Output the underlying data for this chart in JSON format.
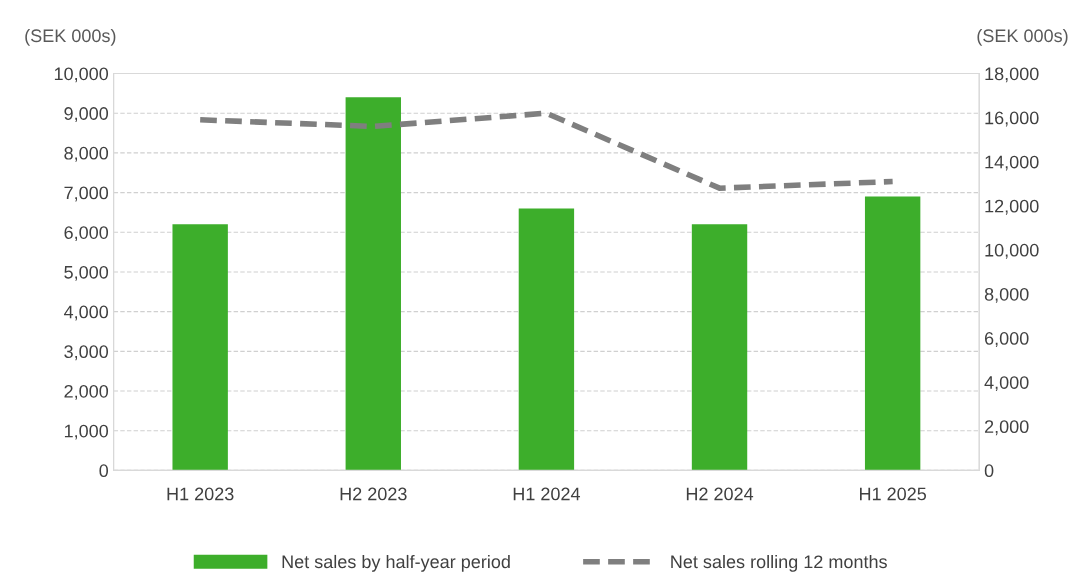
{
  "chart_data": {
    "type": "bar",
    "ylabel": "(SEK 000s)",
    "y2label": "(SEK 000s)",
    "categories": [
      "H1 2023",
      "H2 2023",
      "H1 2024",
      "H2 2024",
      "H1 2025"
    ],
    "series": [
      {
        "name": "Net sales by half-year period",
        "color": "#3dae2b",
        "values": [
          6200,
          9400,
          6600,
          6200,
          6900
        ]
      },
      {
        "name": "Net sales rolling 12 months",
        "type": "line",
        "axis": "y2",
        "color": "#7f7f7f",
        "line_style": "dashed",
        "values": [
          15900,
          15600,
          16200,
          12800,
          13100
        ]
      }
    ],
    "ylim": [
      0,
      10000
    ],
    "yticks": [
      0,
      {
        "value": 1000,
        "label": "1,000"
      },
      {
        "value": 2000,
        "label": "2,000"
      },
      {
        "value": 3000,
        "label": "3,000"
      },
      {
        "value": 4000,
        "label": "4,000"
      },
      {
        "value": 5000,
        "label": "5,000"
      },
      {
        "value": 6000,
        "label": "6,000"
      },
      {
        "value": 7000,
        "label": "7,000"
      },
      {
        "value": 8000,
        "label": "8,000"
      },
      {
        "value": 9000,
        "label": "9,000"
      },
      {
        "value": 10000,
        "label": "10,000"
      }
    ],
    "y2lim": [
      0,
      18000
    ],
    "y2ticks": [
      0,
      {
        "value": 2000,
        "label": "2,000"
      },
      {
        "value": 4000,
        "label": "4,000"
      },
      {
        "value": 6000,
        "label": "6,000"
      },
      {
        "value": 8000,
        "label": "8,000"
      },
      {
        "value": 10000,
        "label": "10,000"
      },
      {
        "value": 12000,
        "label": "12,000"
      },
      {
        "value": 14000,
        "label": "14,000"
      },
      {
        "value": 16000,
        "label": "16,000"
      },
      {
        "value": 18000,
        "label": "18,000"
      }
    ],
    "grid": "y",
    "legend": "bottom"
  }
}
